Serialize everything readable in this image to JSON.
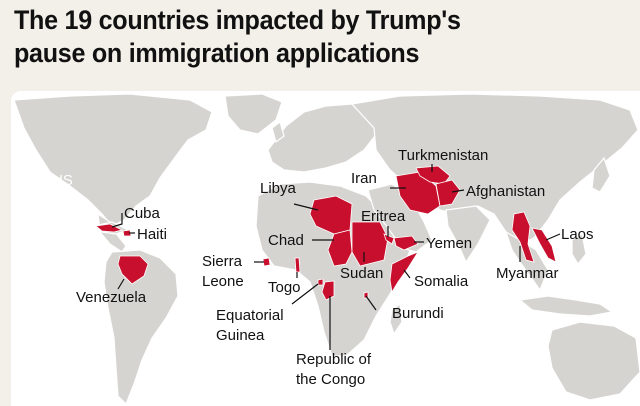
{
  "title_line1": "The 19 countries impacted by Trump's",
  "title_line2": "pause on immigration applications",
  "colors": {
    "highlight": "#c8102e",
    "land": "#d6d4d1",
    "water": "#ffffff",
    "background": "#f3efe9"
  },
  "labels": {
    "us": "US",
    "cuba": "Cuba",
    "haiti": "Haiti",
    "venezuela": "Venezuela",
    "sierra_leone_1": "Sierra",
    "sierra_leone_2": "Leone",
    "togo": "Togo",
    "equatorial_guinea_1": "Equatorial",
    "equatorial_guinea_2": "Guinea",
    "republic_congo_1": "Republic of",
    "republic_congo_2": "the Congo",
    "libya": "Libya",
    "chad": "Chad",
    "sudan": "Sudan",
    "eritrea": "Eritrea",
    "yemen": "Yemen",
    "somalia": "Somalia",
    "burundi": "Burundi",
    "iran": "Iran",
    "turkmenistan": "Turkmenistan",
    "afghanistan": "Afghanistan",
    "myanmar": "Myanmar",
    "laos": "Laos"
  }
}
